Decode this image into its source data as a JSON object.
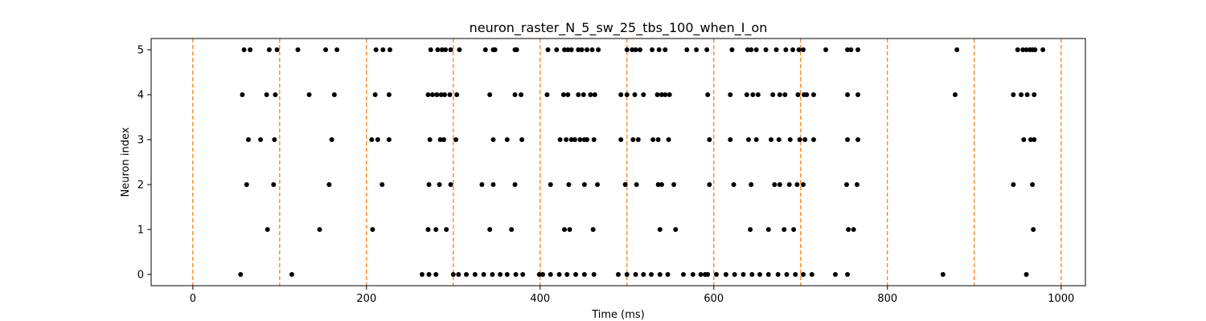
{
  "chart_data": {
    "type": "scatter",
    "title": "neuron_raster_N_5_sw_25_tbs_100_when_I_on",
    "xlabel": "Time (ms)",
    "ylabel": "Neuron index",
    "xlim": [
      -48,
      1028
    ],
    "ylim": [
      -0.25,
      5.25
    ],
    "xticks": [
      0,
      200,
      400,
      600,
      800,
      1000
    ],
    "yticks": [
      0,
      1,
      2,
      3,
      4,
      5
    ],
    "grid": false,
    "marker_color": "#000000",
    "vline_color": "#ff7f0e",
    "vlines": [
      0,
      100,
      200,
      300,
      400,
      500,
      600,
      700,
      800,
      900,
      1000
    ],
    "series": [
      {
        "neuron": 0,
        "times": [
          55,
          114,
          264,
          272,
          280,
          300,
          306,
          315,
          325,
          335,
          345,
          354,
          362,
          372,
          380,
          399,
          403,
          412,
          422,
          431,
          441,
          451,
          462,
          490,
          500,
          510,
          519,
          528,
          538,
          547,
          565,
          576,
          585,
          590,
          593,
          603,
          614,
          624,
          634,
          644,
          653,
          663,
          674,
          684,
          694,
          703,
          713,
          740,
          754,
          864,
          960
        ]
      },
      {
        "neuron": 1,
        "times": [
          86,
          146,
          207,
          271,
          280,
          292,
          342,
          367,
          428,
          434,
          461,
          538,
          556,
          642,
          663,
          681,
          692,
          755,
          761,
          968
        ]
      },
      {
        "neuron": 2,
        "times": [
          62,
          93,
          157,
          218,
          272,
          284,
          297,
          333,
          346,
          371,
          412,
          433,
          451,
          466,
          498,
          511,
          536,
          540,
          554,
          595,
          623,
          643,
          670,
          676,
          687,
          696,
          703,
          753,
          765,
          945,
          967
        ]
      },
      {
        "neuron": 3,
        "times": [
          64,
          78,
          94,
          160,
          206,
          213,
          226,
          273,
          285,
          289,
          303,
          346,
          362,
          379,
          423,
          430,
          436,
          440,
          446,
          451,
          454,
          462,
          493,
          507,
          513,
          530,
          536,
          548,
          595,
          619,
          640,
          649,
          666,
          675,
          688,
          699,
          705,
          715,
          754,
          766,
          957,
          965,
          969
        ]
      },
      {
        "neuron": 4,
        "times": [
          57,
          85,
          95,
          134,
          163,
          210,
          226,
          271,
          276,
          281,
          286,
          290,
          296,
          304,
          342,
          371,
          378,
          408,
          427,
          432,
          444,
          450,
          458,
          463,
          493,
          500,
          509,
          519,
          535,
          540,
          544,
          549,
          593,
          619,
          638,
          645,
          651,
          668,
          676,
          682,
          697,
          704,
          707,
          715,
          754,
          766,
          878,
          945,
          954,
          961,
          969
        ]
      },
      {
        "neuron": 5,
        "times": [
          59,
          66,
          88,
          97,
          121,
          153,
          166,
          211,
          219,
          227,
          274,
          282,
          287,
          291,
          297,
          307,
          337,
          346,
          348,
          371,
          373,
          409,
          419,
          428,
          432,
          436,
          444,
          448,
          454,
          460,
          467,
          500,
          506,
          510,
          515,
          529,
          537,
          544,
          569,
          580,
          592,
          621,
          639,
          643,
          649,
          660,
          672,
          683,
          691,
          698,
          703,
          729,
          754,
          758,
          766,
          880,
          950,
          956,
          960,
          964,
          967,
          970,
          979
        ]
      }
    ]
  }
}
